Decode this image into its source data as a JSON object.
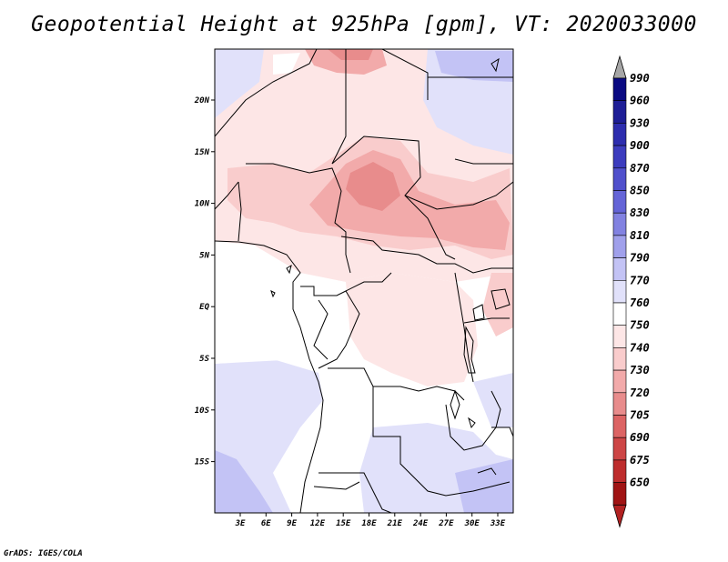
{
  "title": "Geopotential Height at 925hPa [gpm], VT: 2020033000",
  "credit": "GrADS: IGES/COLA",
  "map": {
    "region": "Central Africa",
    "lat_labels": [
      "20N",
      "15N",
      "10N",
      "5N",
      "EQ",
      "5S",
      "10S",
      "15S"
    ],
    "lon_labels": [
      "3E",
      "6E",
      "9E",
      "12E",
      "15E",
      "18E",
      "21E",
      "24E",
      "27E",
      "30E",
      "33E"
    ]
  },
  "colorbar": {
    "labels": [
      "990",
      "960",
      "930",
      "900",
      "870",
      "850",
      "830",
      "810",
      "790",
      "770",
      "760",
      "750",
      "740",
      "730",
      "720",
      "705",
      "690",
      "675",
      "650"
    ],
    "colors": [
      "#0a0a82",
      "#1e1e96",
      "#2d2dae",
      "#3c3cbe",
      "#5050cc",
      "#6464d7",
      "#8282e1",
      "#a0a0eb",
      "#c3c3f5",
      "#e1e1fa",
      "#ffffff",
      "#fde6e6",
      "#f9cccc",
      "#f2aaaa",
      "#e88c8c",
      "#dc6464",
      "#cd4646",
      "#be2d2d",
      "#a01414"
    ],
    "top_arrow_color": "#a6a6a6",
    "bottom_arrow_color": "#b22222"
  }
}
